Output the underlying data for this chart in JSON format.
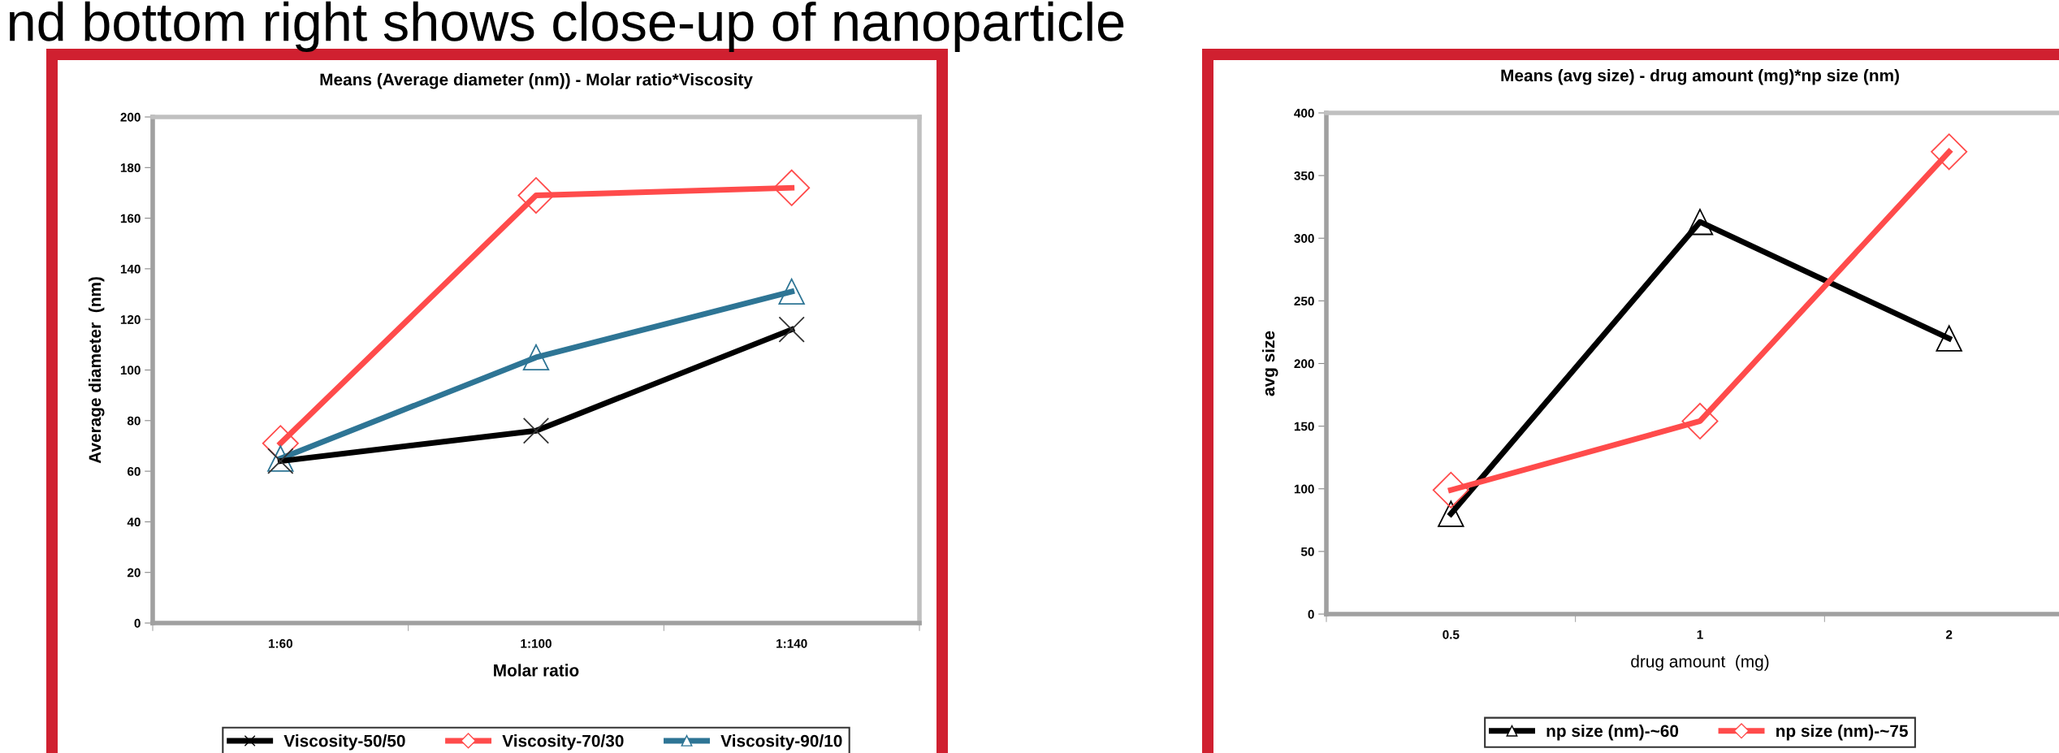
{
  "chart_data": [
    {
      "type": "line",
      "title": "Means (Average diameter (nm)) - Molar ratio*Viscosity",
      "xlabel": "Molar ratio",
      "ylabel": "Average diameter  (nm)",
      "annotations": [
        "nd bottom right shows close-up of nanoparticle"
      ],
      "categories": [
        "1:60",
        "1:100",
        "1:140"
      ],
      "ylim": [
        0,
        200
      ],
      "yticks": [
        0,
        20,
        40,
        60,
        80,
        100,
        120,
        140,
        160,
        180,
        200
      ],
      "series": [
        {
          "name": "Viscosity-50/50",
          "color": "#000000",
          "marker": "cross",
          "values": [
            64,
            76,
            116
          ]
        },
        {
          "name": "Viscosity-70/30",
          "color": "#ff4b4b",
          "marker": "diamond",
          "values": [
            71,
            169,
            172
          ]
        },
        {
          "name": "Viscosity-90/10",
          "color": "#2e7595",
          "marker": "triangle",
          "values": [
            65,
            105,
            131
          ]
        }
      ],
      "grid": false,
      "legend": "bottom"
    },
    {
      "type": "line",
      "title": "Means (avg size) - drug amount (mg)*np size (nm)",
      "xlabel": "drug amount  (mg)",
      "ylabel": "avg size",
      "categories": [
        "0.5",
        "1",
        "2"
      ],
      "ylim": [
        0,
        400
      ],
      "yticks": [
        0,
        50,
        100,
        150,
        200,
        250,
        300,
        350,
        400
      ],
      "series": [
        {
          "name": "np size (nm)-~60",
          "color": "#000000",
          "marker": "triangle",
          "values": [
            80,
            313,
            220
          ]
        },
        {
          "name": "np size (nm)-~75",
          "color": "#ff4b4b",
          "marker": "diamond",
          "values": [
            99,
            154,
            369
          ]
        }
      ],
      "grid": false,
      "legend": "bottom"
    }
  ]
}
